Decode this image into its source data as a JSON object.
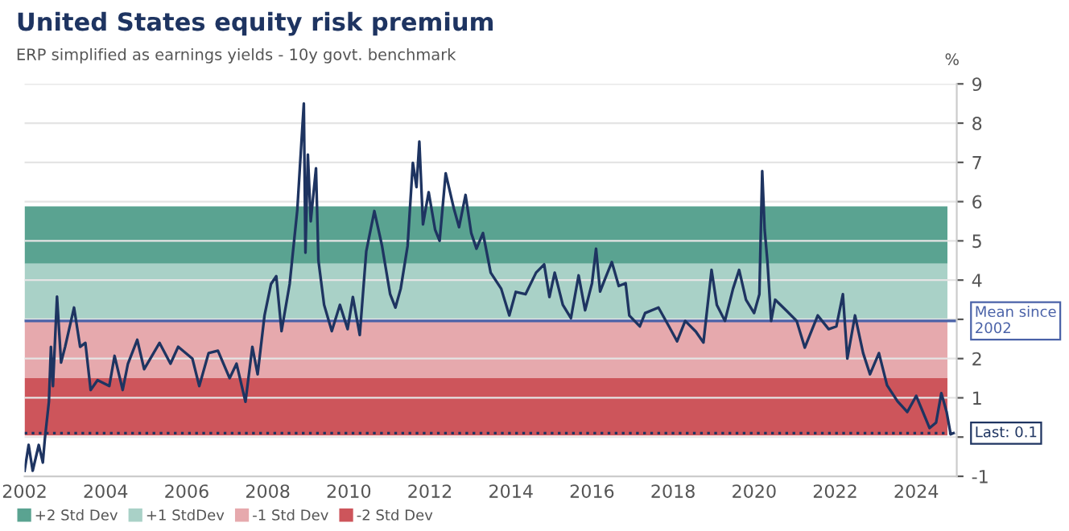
{
  "chart_data": {
    "type": "line",
    "title": "United States equity risk premium",
    "subtitle": "ERP simplified as earnings yields - 10y govt. benchmark",
    "ylabel": "%",
    "x": [
      2002.0,
      2002.1,
      2002.2,
      2002.35,
      2002.45,
      2002.5,
      2002.6,
      2002.65,
      2002.7,
      2002.8,
      2002.9,
      2003.0,
      2003.22,
      2003.37,
      2003.5,
      2003.63,
      2003.8,
      2004.09,
      2004.22,
      2004.42,
      2004.55,
      2004.78,
      2004.95,
      2005.33,
      2005.6,
      2005.79,
      2006.14,
      2006.31,
      2006.54,
      2006.77,
      2007.06,
      2007.23,
      2007.45,
      2007.62,
      2007.75,
      2007.92,
      2008.08,
      2008.21,
      2008.34,
      2008.54,
      2008.73,
      2008.8,
      2008.89,
      2008.93,
      2008.99,
      2009.06,
      2009.19,
      2009.25,
      2009.39,
      2009.58,
      2009.78,
      2009.97,
      2010.1,
      2010.27,
      2010.43,
      2010.63,
      2010.82,
      2011.02,
      2011.15,
      2011.28,
      2011.45,
      2011.58,
      2011.67,
      2011.74,
      2011.83,
      2011.97,
      2012.13,
      2012.24,
      2012.39,
      2012.59,
      2012.72,
      2012.88,
      2013.02,
      2013.15,
      2013.31,
      2013.5,
      2013.76,
      2013.96,
      2014.12,
      2014.36,
      2014.62,
      2014.82,
      2014.95,
      2015.08,
      2015.28,
      2015.48,
      2015.67,
      2015.83,
      2016.0,
      2016.1,
      2016.2,
      2016.33,
      2016.49,
      2016.66,
      2016.83,
      2016.92,
      2017.18,
      2017.31,
      2017.64,
      2017.9,
      2018.1,
      2018.3,
      2018.56,
      2018.75,
      2018.95,
      2019.08,
      2019.28,
      2019.48,
      2019.63,
      2019.8,
      2020.0,
      2020.13,
      2020.2,
      2020.26,
      2020.33,
      2020.42,
      2020.52,
      2020.79,
      2021.05,
      2021.25,
      2021.57,
      2021.84,
      2022.03,
      2022.19,
      2022.3,
      2022.49,
      2022.69,
      2022.86,
      2023.08,
      2023.28,
      2023.54,
      2023.78,
      2024.0,
      2024.33,
      2024.49,
      2024.62,
      2024.75,
      2024.85,
      2024.92
    ],
    "series": [
      {
        "color": "#1e3461",
        "values": [
          -0.86,
          -0.2,
          -0.86,
          -0.2,
          -0.65,
          -0.05,
          0.9,
          2.3,
          1.3,
          3.58,
          1.9,
          2.3,
          3.3,
          2.3,
          2.4,
          1.2,
          1.45,
          1.3,
          2.07,
          1.2,
          1.87,
          2.48,
          1.73,
          2.4,
          1.87,
          2.3,
          2.0,
          1.3,
          2.14,
          2.2,
          1.5,
          1.87,
          0.9,
          2.3,
          1.6,
          3.1,
          3.9,
          4.1,
          2.7,
          3.9,
          5.8,
          7.0,
          8.5,
          4.7,
          7.2,
          5.5,
          6.85,
          4.5,
          3.37,
          2.7,
          3.37,
          2.75,
          3.57,
          2.6,
          4.73,
          5.76,
          4.87,
          3.64,
          3.3,
          3.78,
          4.87,
          6.99,
          6.37,
          7.53,
          5.42,
          6.24,
          5.28,
          5.0,
          6.72,
          5.83,
          5.35,
          6.17,
          5.2,
          4.8,
          5.2,
          4.19,
          3.78,
          3.1,
          3.7,
          3.64,
          4.19,
          4.4,
          3.57,
          4.19,
          3.37,
          3.03,
          4.12,
          3.23,
          3.92,
          4.8,
          3.71,
          4.05,
          4.46,
          3.85,
          3.92,
          3.1,
          2.82,
          3.16,
          3.3,
          2.82,
          2.44,
          2.96,
          2.69,
          2.41,
          4.26,
          3.37,
          2.96,
          3.78,
          4.26,
          3.5,
          3.16,
          3.64,
          6.78,
          5.28,
          4.46,
          2.96,
          3.5,
          3.23,
          2.96,
          2.28,
          3.1,
          2.75,
          2.82,
          3.64,
          2.0,
          3.1,
          2.14,
          1.6,
          2.14,
          1.32,
          0.91,
          0.64,
          1.05,
          0.23,
          0.37,
          1.12,
          0.64,
          0.07,
          0.1
        ]
      }
    ],
    "xlim": [
      2002,
      2025
    ],
    "xticks": [
      2002,
      2004,
      2006,
      2008,
      2010,
      2012,
      2014,
      2016,
      2018,
      2020,
      2022,
      2024
    ],
    "ylim": [
      -1,
      9
    ],
    "yticks": [
      -1,
      {
        "value": 0,
        "label": null
      },
      1,
      2,
      {
        "value": 3,
        "label": null
      },
      4,
      5,
      6,
      7,
      8,
      9
    ],
    "grid": "y",
    "legend": "bottom left",
    "bands": [
      {
        "axis": "y",
        "from": 4.42,
        "to": 5.88,
        "label": "+2 Std Dev",
        "color": "#5aa391"
      },
      {
        "axis": "y",
        "from": 2.96,
        "to": 4.42,
        "label": "+1 StdDev",
        "color": "#a9d1c7"
      },
      {
        "axis": "y",
        "from": 1.5,
        "to": 2.96,
        "label": "-1 Std Dev",
        "color": "#e6a9ad"
      },
      {
        "axis": "y",
        "from": 0.04,
        "to": 1.5,
        "label": "-2 Std Dev",
        "color": "#cd555b"
      }
    ],
    "ref_lines": [
      {
        "axis": "y",
        "value": 2.96,
        "label": "Mean since\n2002",
        "color": "#4a62a8",
        "line_style": "solid"
      },
      {
        "axis": "y",
        "value": 0.1,
        "label": "Last: 0.1",
        "color": "#1e3461",
        "line_style": "dotted"
      }
    ]
  }
}
